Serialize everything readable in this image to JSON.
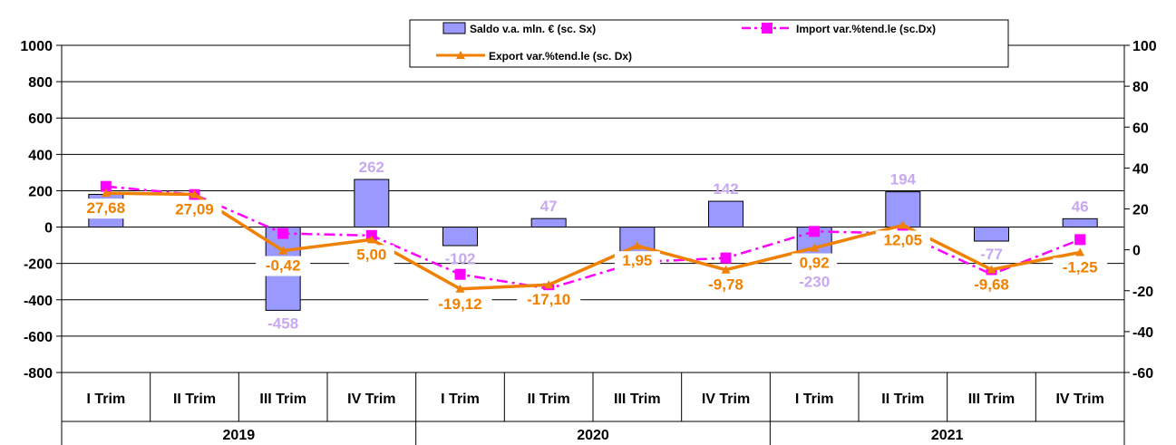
{
  "chart_data": {
    "type": "bar",
    "categories": [
      "I Trim",
      "II Trim",
      "III Trim",
      "IV Trim",
      "I Trim",
      "II Trim",
      "III Trim",
      "IV Trim",
      "I Trim",
      "II Trim",
      "III Trim",
      "IV Trim"
    ],
    "years": [
      "2019",
      "2020",
      "2021"
    ],
    "left_axis": {
      "min": -800,
      "max": 1000,
      "step": 200,
      "ticks": [
        "1000",
        "800",
        "600",
        "400",
        "200",
        "0",
        "-200",
        "-400",
        "-600",
        "-800"
      ]
    },
    "right_axis": {
      "min": -60,
      "max": 100,
      "step": 20,
      "ticks": [
        "100",
        "80",
        "60",
        "40",
        "20",
        "0",
        "-20",
        "-40",
        "-60"
      ]
    },
    "grid": true,
    "legend_position": "top-center",
    "series": [
      {
        "name": "Saldo v.a. mln. € (sc. Sx)",
        "kind": "bar",
        "axis": "left",
        "color": "#9999ff",
        "values": [
          180,
          0,
          -458,
          262,
          -102,
          47,
          -230,
          142,
          -230,
          194,
          -77,
          46
        ],
        "labels": [
          "",
          "",
          "-458",
          "262",
          "-102",
          "47",
          "",
          "142",
          "-230",
          "194",
          "-77",
          "46"
        ]
      },
      {
        "name": "Import var.%tend.le (sc.Dx)",
        "kind": "line",
        "axis": "right",
        "color": "#ff00ff",
        "values": [
          31,
          27,
          8,
          7,
          -12,
          -19,
          -6,
          -4,
          9,
          8,
          -12,
          5
        ]
      },
      {
        "name": "Export var.%tend.le (sc. Dx)",
        "kind": "line",
        "axis": "right",
        "color": "#f08000",
        "values": [
          27.68,
          27.09,
          -0.42,
          5.0,
          -19.12,
          -17.1,
          1.95,
          -9.78,
          0.92,
          12.05,
          -9.68,
          -1.25
        ],
        "labels": [
          "27,68",
          "27,09",
          "-0,42",
          "5,00",
          "-19,12",
          "-17,10",
          "1,95",
          "-9,78",
          "0,92",
          "12,05",
          "-9,68",
          "-1,25"
        ]
      }
    ]
  }
}
